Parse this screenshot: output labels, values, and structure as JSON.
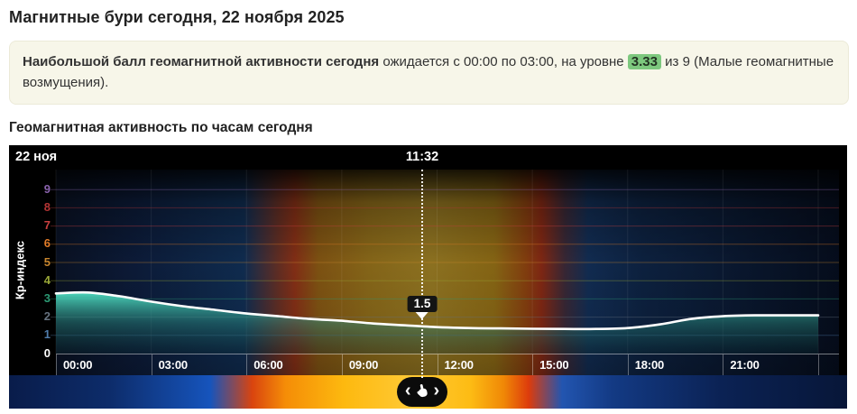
{
  "page": {
    "title": "Магнитные бури сегодня, 22 ноября 2025"
  },
  "notice": {
    "bold": "Наибольшой балл геомагнитной активности сегодня",
    "mid": " ожидается с 00:00 по 03:00, на уровне ",
    "value": "3.33",
    "tail": " из 9 (Малые геомагнитные возмущения).",
    "highlight_color": "#7dc87e"
  },
  "section": {
    "title": "Геомагнитная активность по часам сегодня"
  },
  "chart_data": {
    "type": "area",
    "title": "Геомагнитная активность по часам сегодня",
    "date_label": "22 ноя",
    "y_axis_title": "Кр-индекс",
    "xlim_hours": [
      0,
      24
    ],
    "ylim": [
      0,
      9.9
    ],
    "grid": true,
    "line_color": "#ffffff",
    "fill_colors": [
      "rgba(80,225,195,0.95)",
      "rgba(40,130,120,0.5)",
      "rgba(10,45,50,0.3)"
    ],
    "background": "day-night horizontal gradient: night navy, dawn red ~07:00, day gold, dusk red ~15:00, night navy",
    "x": [
      0,
      1,
      2,
      3,
      4,
      5,
      6,
      7,
      8,
      9,
      10,
      11,
      12,
      13,
      14,
      15,
      16,
      17,
      18,
      19,
      20,
      21,
      22,
      23,
      24
    ],
    "values": [
      3.3,
      3.35,
      3.15,
      2.85,
      2.6,
      2.4,
      2.2,
      2.05,
      1.9,
      1.8,
      1.65,
      1.55,
      1.45,
      1.4,
      1.38,
      1.36,
      1.35,
      1.35,
      1.4,
      1.6,
      1.9,
      2.05,
      2.1,
      2.1,
      2.1
    ],
    "x_ticks": [
      {
        "hour": 0,
        "label": "00:00"
      },
      {
        "hour": 3,
        "label": "03:00"
      },
      {
        "hour": 6,
        "label": "06:00"
      },
      {
        "hour": 9,
        "label": "09:00"
      },
      {
        "hour": 12,
        "label": "12:00"
      },
      {
        "hour": 15,
        "label": "15:00"
      },
      {
        "hour": 18,
        "label": "18:00"
      },
      {
        "hour": 21,
        "label": "21:00"
      },
      {
        "hour": 24,
        "label": ""
      }
    ],
    "y_ticks": [
      {
        "value": 0,
        "color": "#ffffff"
      },
      {
        "value": 1,
        "color": "#4f7cab"
      },
      {
        "value": 2,
        "color": "#66727f"
      },
      {
        "value": 3,
        "color": "#2c9a74"
      },
      {
        "value": 4,
        "color": "#9aa838"
      },
      {
        "value": 5,
        "color": "#c8862e"
      },
      {
        "value": 6,
        "color": "#e07b28"
      },
      {
        "value": 7,
        "color": "#c94040"
      },
      {
        "value": 8,
        "color": "#b33434"
      },
      {
        "value": 9,
        "color": "#8a63ad"
      }
    ],
    "marker": {
      "time": "11:32",
      "hour": 11.533,
      "value": 1.5,
      "value_label": "1.5"
    }
  },
  "navigator": {
    "left_arrow": "‹",
    "right_arrow": "›",
    "hand_icon": "hand-drag-pointer"
  }
}
